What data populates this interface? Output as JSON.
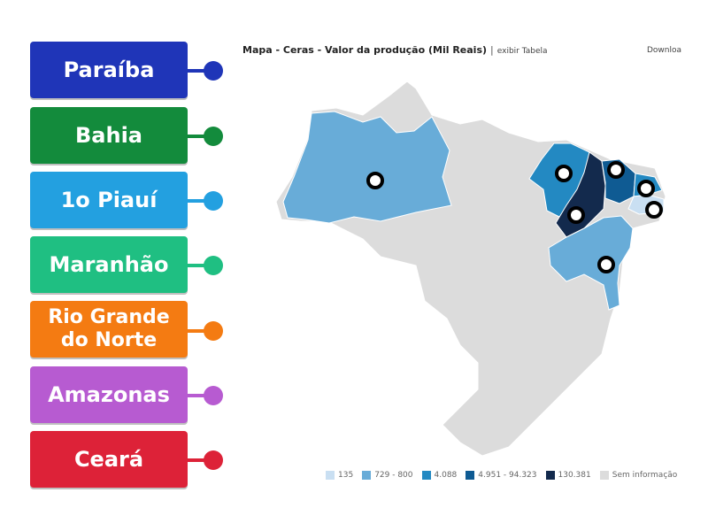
{
  "labels": [
    {
      "text": "Paraíba",
      "color": "#1f35b8"
    },
    {
      "text": "Bahia",
      "color": "#138b3c"
    },
    {
      "text": "1o Piauí",
      "color": "#23a0e0"
    },
    {
      "text": "Maranhão",
      "color": "#1fbf82"
    },
    {
      "text": "Rio Grande do Norte",
      "color": "#f47b12"
    },
    {
      "text": "Amazonas",
      "color": "#b75bd1"
    },
    {
      "text": "Ceará",
      "color": "#dd2238"
    }
  ],
  "map": {
    "title": "Mapa - Ceras - Valor da produção (Mil Reais)",
    "separator": "|",
    "link": "exibir Tabela",
    "download": "Downloa"
  },
  "legend": [
    {
      "label": "135",
      "color": "#c9dff2"
    },
    {
      "label": "729 - 800",
      "color": "#68acd8"
    },
    {
      "label": "4.088",
      "color": "#2389c2"
    },
    {
      "label": "4.951 - 94.323",
      "color": "#0f5b93"
    },
    {
      "label": "130.381",
      "color": "#132a4d"
    },
    {
      "label": "Sem informação",
      "color": "#dcdcdc"
    }
  ]
}
